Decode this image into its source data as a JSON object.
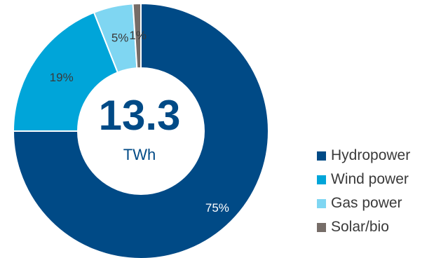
{
  "chart_data": {
    "type": "pie",
    "donut": true,
    "center_value": "13.3",
    "center_unit": "TWh",
    "labels": [
      "Hydropower",
      "Wind power",
      "Gas power",
      "Solar/bio"
    ],
    "values": [
      75,
      19,
      5,
      1
    ],
    "value_labels": [
      "75%",
      "19%",
      "5%",
      "1%"
    ],
    "colors": [
      "#004a86",
      "#00a5d9",
      "#7fd6f2",
      "#766d68"
    ],
    "legend_placement": "bottom-right"
  }
}
